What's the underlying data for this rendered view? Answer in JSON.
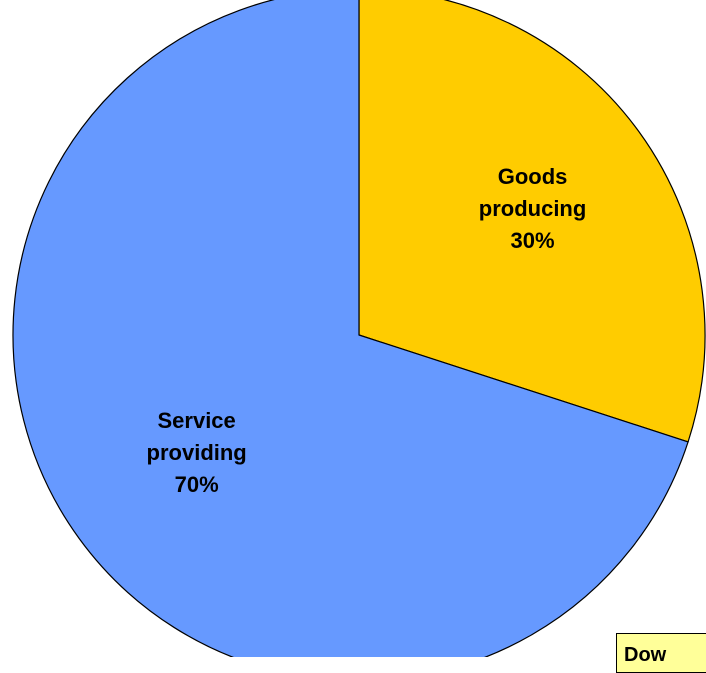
{
  "chart_data": {
    "type": "pie",
    "title": "",
    "slices": [
      {
        "label": "Goods producing",
        "value": 30,
        "display_value": "30%",
        "color": "#ffcc00",
        "label_lines": [
          "Goods",
          "producing",
          "30%"
        ]
      },
      {
        "label": "Service providing",
        "value": 70,
        "display_value": "70%",
        "color": "#6699ff",
        "label_lines": [
          "Service",
          "providing",
          "70%"
        ]
      }
    ],
    "start_angle_deg": 0,
    "direction": "clockwise",
    "legend": "none"
  },
  "note": {
    "text": "Dow",
    "background": "#ffff99"
  }
}
